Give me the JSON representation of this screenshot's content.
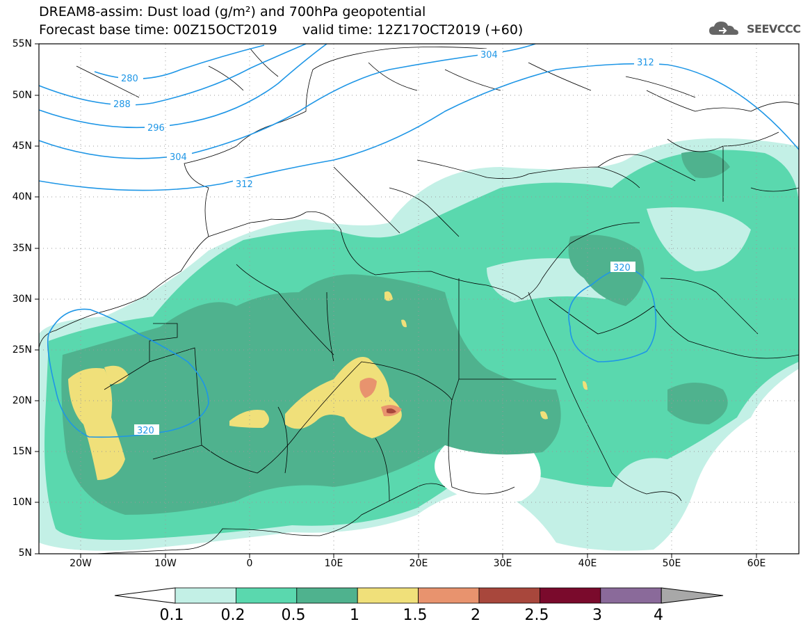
{
  "title_line1": "DREAM8-assim: Dust load (g/m²) and 700hPa geopotential",
  "title_line2": "Forecast base time: 00Z15OCT2019      valid time: 12Z17OCT2019 (+60)",
  "logo_text": "SEEVCCC",
  "lat_labels": [
    "55N",
    "50N",
    "45N",
    "40N",
    "35N",
    "30N",
    "25N",
    "20N",
    "15N",
    "10N",
    "5N"
  ],
  "lon_labels": [
    "20W",
    "10W",
    "0",
    "10E",
    "20E",
    "30E",
    "40E",
    "50E",
    "60E"
  ],
  "contour_labels": [
    "280",
    "288",
    "296",
    "304",
    "312",
    "304",
    "312",
    "320",
    "320"
  ],
  "colorbar": {
    "ticks": [
      "0.1",
      "0.2",
      "0.5",
      "1",
      "1.5",
      "2",
      "2.5",
      "3",
      "4"
    ],
    "colors": [
      "#c3f0e6",
      "#5ad8ae",
      "#4fb28e",
      "#f0e07a",
      "#e8936e",
      "#a8473c",
      "#7a0a2c",
      "#8a6a9a",
      "#a8a8a8"
    ]
  },
  "colors": {
    "geopotential": "#1e96e6",
    "borders": "#000000",
    "grid": "#888888"
  }
}
